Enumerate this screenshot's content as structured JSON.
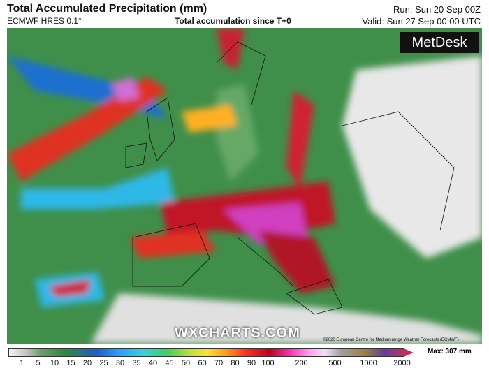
{
  "header": {
    "title": "Total Accumulated Precipitation (mm)",
    "model": "ECMWF HRES 0.1°",
    "subtitle": "Total accumulation since T+0",
    "run": "Run: Sun 20 Sep 00Z",
    "valid": "Valid: Sun 27 Sep 00:00 UTC"
  },
  "logo": "MetDesk",
  "watermark": "WXCHARTS.COM",
  "copyright": "©2020 European Centre for Medium-range Weather Forecasts (ECMWF)",
  "legend": {
    "ticks": [
      1,
      5,
      10,
      15,
      20,
      25,
      30,
      35,
      40,
      45,
      50,
      60,
      70,
      80,
      90,
      100,
      200,
      500,
      1000,
      2000
    ],
    "max": "Max: 307 mm"
  }
}
